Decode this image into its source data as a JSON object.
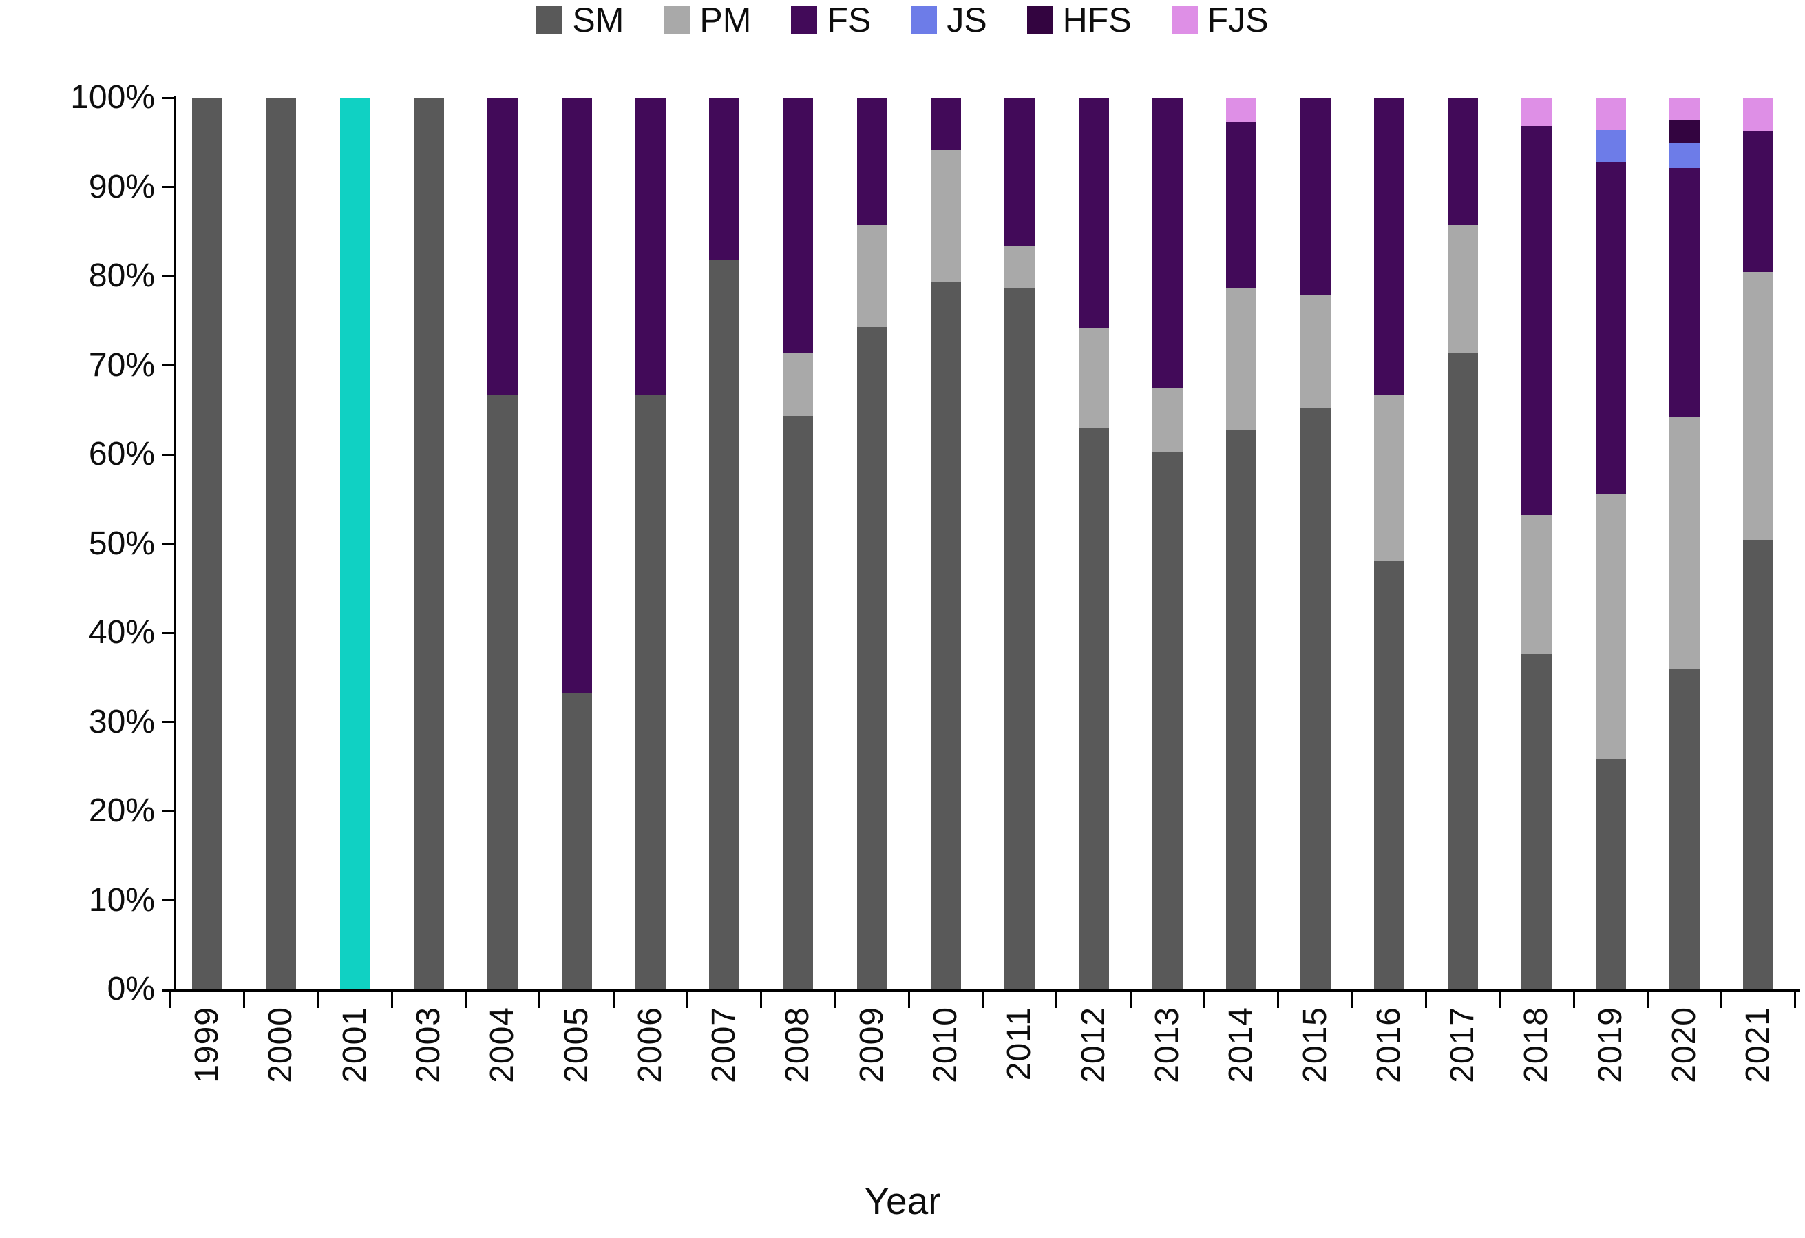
{
  "chart_data": {
    "type": "bar",
    "subtype": "stacked_100_percent_column",
    "title": "",
    "xlabel": "Year",
    "ylabel": "",
    "ylim": [
      0,
      100
    ],
    "grid": false,
    "legend_position": "top",
    "ytick_labels": [
      "0%",
      "10%",
      "20%",
      "30%",
      "40%",
      "50%",
      "60%",
      "70%",
      "80%",
      "90%",
      "100%"
    ],
    "legend": [
      "SM",
      "PM",
      "FS",
      "JS",
      "HFS",
      "FJS"
    ],
    "colors": {
      "SM": "#595959",
      "PM": "#a9a9a9",
      "FS": "#420a59",
      "JS": "#6d7ce8",
      "HFS": "#330440",
      "FJS": "#de8fe6",
      "UNLABELED": "#10d1c3",
      "axis": "#000000",
      "text": "#0d0d0d"
    },
    "note": "2001 column is drawn as a full-height teal bar with no matching legend entry; year 2002 is absent from the axis",
    "categories": [
      "1999",
      "2000",
      "2001",
      "2003",
      "2004",
      "2005",
      "2006",
      "2007",
      "2008",
      "2009",
      "2010",
      "2011",
      "2012",
      "2013",
      "2014",
      "2015",
      "2016",
      "2017",
      "2018",
      "2019",
      "2020",
      "2021"
    ],
    "bars": [
      {
        "year": "1999",
        "segments": [
          {
            "key": "SM",
            "value": 100
          }
        ]
      },
      {
        "year": "2000",
        "segments": [
          {
            "key": "SM",
            "value": 100
          }
        ]
      },
      {
        "year": "2001",
        "segments": [
          {
            "key": "UNLABELED",
            "value": 100
          }
        ]
      },
      {
        "year": "2003",
        "segments": [
          {
            "key": "SM",
            "value": 100
          }
        ]
      },
      {
        "year": "2004",
        "segments": [
          {
            "key": "SM",
            "value": 66.7
          },
          {
            "key": "FS",
            "value": 33.3
          }
        ]
      },
      {
        "year": "2005",
        "segments": [
          {
            "key": "SM",
            "value": 33.3
          },
          {
            "key": "FS",
            "value": 66.7
          }
        ]
      },
      {
        "year": "2006",
        "segments": [
          {
            "key": "SM",
            "value": 66.7
          },
          {
            "key": "FS",
            "value": 33.3
          }
        ]
      },
      {
        "year": "2007",
        "segments": [
          {
            "key": "SM",
            "value": 81.8
          },
          {
            "key": "FS",
            "value": 18.2
          }
        ]
      },
      {
        "year": "2008",
        "segments": [
          {
            "key": "SM",
            "value": 64.3
          },
          {
            "key": "PM",
            "value": 7.1
          },
          {
            "key": "FS",
            "value": 28.6
          }
        ]
      },
      {
        "year": "2009",
        "segments": [
          {
            "key": "SM",
            "value": 74.3
          },
          {
            "key": "PM",
            "value": 11.4
          },
          {
            "key": "FS",
            "value": 14.3
          }
        ]
      },
      {
        "year": "2010",
        "segments": [
          {
            "key": "SM",
            "value": 79.4
          },
          {
            "key": "PM",
            "value": 14.7
          },
          {
            "key": "FS",
            "value": 5.9
          }
        ]
      },
      {
        "year": "2011",
        "segments": [
          {
            "key": "SM",
            "value": 78.6
          },
          {
            "key": "PM",
            "value": 4.8
          },
          {
            "key": "FS",
            "value": 16.6
          }
        ]
      },
      {
        "year": "2012",
        "segments": [
          {
            "key": "SM",
            "value": 63.0
          },
          {
            "key": "PM",
            "value": 11.1
          },
          {
            "key": "FS",
            "value": 25.9
          }
        ]
      },
      {
        "year": "2013",
        "segments": [
          {
            "key": "SM",
            "value": 60.2
          },
          {
            "key": "PM",
            "value": 7.2
          },
          {
            "key": "FS",
            "value": 32.6
          }
        ]
      },
      {
        "year": "2014",
        "segments": [
          {
            "key": "SM",
            "value": 62.7
          },
          {
            "key": "PM",
            "value": 16.0
          },
          {
            "key": "FS",
            "value": 18.6
          },
          {
            "key": "FJS",
            "value": 2.7
          }
        ]
      },
      {
        "year": "2015",
        "segments": [
          {
            "key": "SM",
            "value": 65.2
          },
          {
            "key": "PM",
            "value": 12.6
          },
          {
            "key": "FS",
            "value": 22.2
          }
        ]
      },
      {
        "year": "2016",
        "segments": [
          {
            "key": "SM",
            "value": 48.0
          },
          {
            "key": "PM",
            "value": 18.7
          },
          {
            "key": "FS",
            "value": 33.3
          }
        ]
      },
      {
        "year": "2017",
        "segments": [
          {
            "key": "SM",
            "value": 71.4
          },
          {
            "key": "PM",
            "value": 14.3
          },
          {
            "key": "FS",
            "value": 14.3
          }
        ]
      },
      {
        "year": "2018",
        "segments": [
          {
            "key": "SM",
            "value": 37.6
          },
          {
            "key": "PM",
            "value": 15.6
          },
          {
            "key": "FS",
            "value": 43.6
          },
          {
            "key": "FJS",
            "value": 3.2
          }
        ]
      },
      {
        "year": "2019",
        "segments": [
          {
            "key": "SM",
            "value": 25.8
          },
          {
            "key": "PM",
            "value": 29.8
          },
          {
            "key": "FS",
            "value": 37.2
          },
          {
            "key": "JS",
            "value": 3.6
          },
          {
            "key": "FJS",
            "value": 3.6
          }
        ]
      },
      {
        "year": "2020",
        "segments": [
          {
            "key": "SM",
            "value": 35.9
          },
          {
            "key": "PM",
            "value": 28.3
          },
          {
            "key": "FS",
            "value": 27.9
          },
          {
            "key": "JS",
            "value": 2.8
          },
          {
            "key": "HFS",
            "value": 2.6
          },
          {
            "key": "FJS",
            "value": 2.5
          }
        ]
      },
      {
        "year": "2021",
        "segments": [
          {
            "key": "SM",
            "value": 50.4
          },
          {
            "key": "PM",
            "value": 30.1
          },
          {
            "key": "FS",
            "value": 15.8
          },
          {
            "key": "FJS",
            "value": 3.7
          }
        ]
      }
    ]
  }
}
